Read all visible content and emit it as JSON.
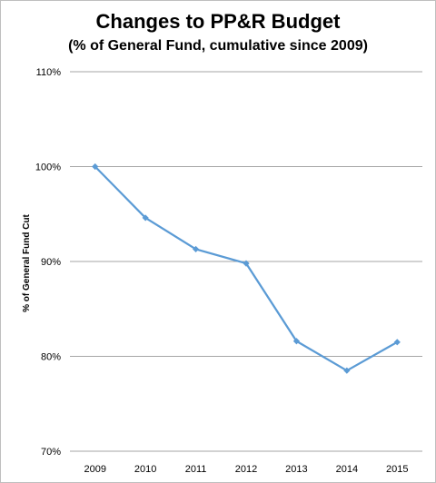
{
  "chart_data": {
    "type": "line",
    "title": "Changes to PP&R Budget",
    "subtitle": "(% of General Fund, cumulative since 2009)",
    "xlabel": "",
    "ylabel": "% of General Fund Cut",
    "categories": [
      "2009",
      "2010",
      "2011",
      "2012",
      "2013",
      "2014",
      "2015"
    ],
    "series": [
      {
        "values": [
          100,
          94.6,
          91.3,
          89.8,
          81.6,
          78.5,
          81.5
        ]
      }
    ],
    "ylim": [
      70,
      110
    ],
    "yticks": [
      70,
      80,
      90,
      100,
      110
    ],
    "ytick_labels": [
      "70%",
      "80%",
      "90%",
      "100%",
      "110%"
    ],
    "grid": true,
    "line_color": "#5b9bd5",
    "grid_color": "#a6a6a6"
  }
}
